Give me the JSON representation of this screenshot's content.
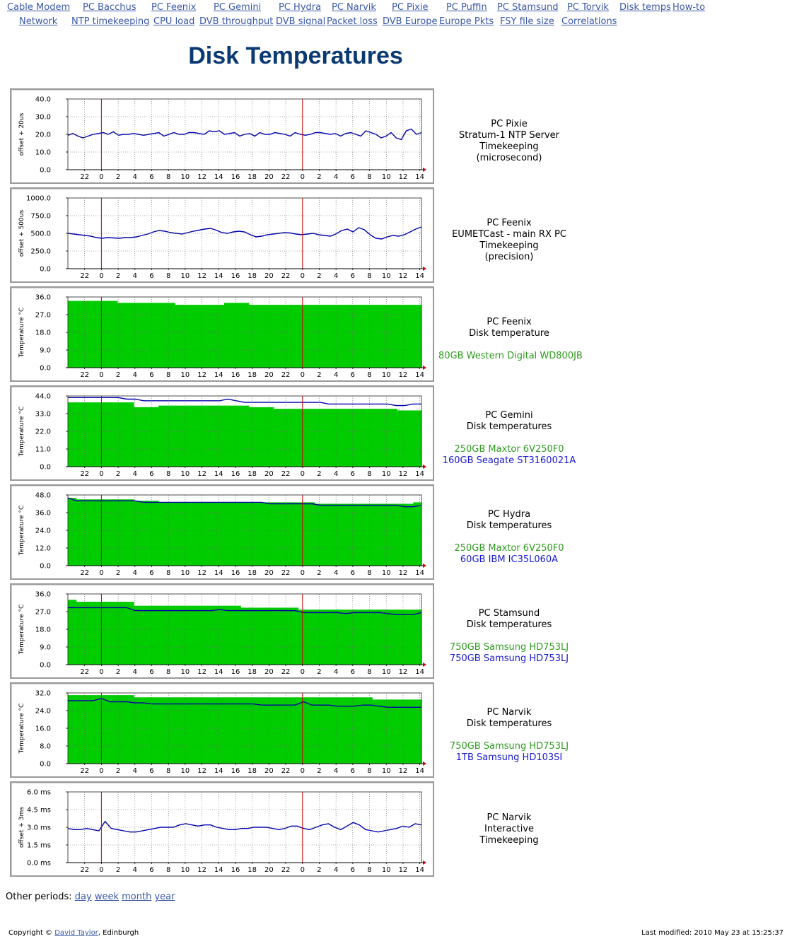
{
  "nav": {
    "row1": [
      "Cable Modem",
      "PC Bacchus",
      "PC Feenix",
      "PC Gemini",
      "PC Hydra",
      "PC Narvik",
      "PC Pixie",
      "PC Puffin",
      "PC Stamsund",
      "PC Torvik",
      "Disk temps",
      "How-to"
    ],
    "row2": [
      "Network",
      "NTP timekeeping",
      "CPU load",
      "DVB throughput",
      "DVB signal",
      "Packet loss",
      "DVB Europe",
      "Europe Pkts",
      "FSY file size",
      "Correlations"
    ]
  },
  "page_title": "Disk Temperatures",
  "colors": {
    "fill_green": "#00cc00",
    "line_blue": "#0000aa",
    "midnight_red": "#cc0000",
    "title": "#0b3a72",
    "link": "#3b59a8"
  },
  "chart_data": [
    {
      "type": "line",
      "ylabel": "offset + 20us",
      "yticks": [
        "40.0",
        "30.0",
        "20.0",
        "10.0",
        "0.0"
      ],
      "ylim": [
        0,
        40
      ],
      "xticks": [
        "22",
        "0",
        "2",
        "4",
        "6",
        "8",
        "10",
        "12",
        "14",
        "16",
        "18",
        "20",
        "22",
        "0",
        "2",
        "4",
        "6",
        "8",
        "10",
        "12",
        "14"
      ],
      "series": [
        {
          "style": "line",
          "color": "#0000aa",
          "values": [
            19.5,
            20.5,
            19,
            18,
            19,
            20,
            20.5,
            21,
            20,
            21.5,
            19.5,
            20,
            20,
            20.5,
            20,
            19.5,
            20,
            20.5,
            21,
            19,
            20,
            21,
            20,
            20,
            21,
            21,
            20.5,
            20,
            22,
            21.5,
            22,
            20,
            20.5,
            21,
            19,
            20,
            20.5,
            19,
            21,
            20,
            20,
            21,
            20.5,
            20,
            19,
            21,
            20,
            19.5,
            20,
            21,
            21,
            20.5,
            20,
            20.5,
            19,
            20.5,
            21,
            20,
            19,
            22,
            21,
            20,
            18,
            19,
            21,
            18,
            17,
            22,
            23,
            20,
            21
          ]
        }
      ],
      "lines": [
        "PC Pixie",
        "Stratum-1 NTP Server",
        "Timekeeping",
        "(microsecond)"
      ],
      "line_colors": [
        "",
        "",
        "",
        ""
      ]
    },
    {
      "type": "line",
      "ylabel": "offset + 500us",
      "yticks": [
        "1000.0",
        "750.0",
        "500.0",
        "250.0",
        "0.0"
      ],
      "ylim": [
        0,
        1000
      ],
      "xticks": [
        "22",
        "0",
        "2",
        "4",
        "6",
        "8",
        "10",
        "12",
        "14",
        "16",
        "18",
        "20",
        "22",
        "0",
        "2",
        "4",
        "6",
        "8",
        "10",
        "12",
        "14"
      ],
      "series": [
        {
          "style": "line",
          "color": "#0000aa",
          "values": [
            500,
            490,
            480,
            470,
            460,
            440,
            430,
            440,
            435,
            430,
            440,
            440,
            450,
            470,
            490,
            520,
            540,
            530,
            510,
            500,
            490,
            510,
            530,
            545,
            560,
            570,
            545,
            510,
            500,
            520,
            530,
            520,
            480,
            450,
            460,
            480,
            490,
            500,
            510,
            505,
            490,
            480,
            490,
            500,
            480,
            470,
            460,
            490,
            540,
            560,
            520,
            580,
            550,
            480,
            430,
            420,
            450,
            470,
            460,
            480,
            520,
            560,
            590
          ]
        }
      ],
      "lines": [
        "PC Feenix",
        "EUMETCast - main RX PC",
        "Timekeeping",
        "(precision)"
      ],
      "line_colors": [
        "",
        "",
        "",
        ""
      ]
    },
    {
      "type": "area",
      "ylabel": "Temperature °C",
      "yticks": [
        "36.0",
        "27.0",
        "18.0",
        "9.0",
        "0.0"
      ],
      "ylim": [
        0,
        36
      ],
      "xticks": [
        "22",
        "0",
        "2",
        "4",
        "6",
        "8",
        "10",
        "12",
        "14",
        "16",
        "18",
        "20",
        "22",
        "0",
        "2",
        "4",
        "6",
        "8",
        "10",
        "12",
        "14"
      ],
      "series": [
        {
          "style": "area",
          "color": "#00cc00",
          "values": [
            34,
            34,
            34,
            34,
            34,
            34,
            33,
            33,
            33,
            33,
            33,
            33,
            33,
            32,
            32,
            32,
            32,
            32,
            32,
            33,
            33,
            33,
            32,
            32,
            32,
            32,
            32,
            32,
            32,
            32,
            32,
            32,
            32,
            32,
            32,
            32,
            32,
            32,
            32,
            32,
            32,
            32,
            32
          ]
        }
      ],
      "lines": [
        "PC Feenix",
        "Disk temperature",
        "",
        "80GB Western Digital WD800JB"
      ],
      "line_colors": [
        "",
        "",
        "",
        "green"
      ]
    },
    {
      "type": "area+line",
      "ylabel": "Temperature °C",
      "yticks": [
        "44.0",
        "33.0",
        "22.0",
        "11.0",
        "0.0"
      ],
      "ylim": [
        0,
        44
      ],
      "xticks": [
        "22",
        "0",
        "2",
        "4",
        "6",
        "8",
        "10",
        "12",
        "14",
        "16",
        "18",
        "20",
        "22",
        "0",
        "2",
        "4",
        "6",
        "8",
        "10",
        "12",
        "14"
      ],
      "series": [
        {
          "style": "area",
          "color": "#00cc00",
          "values": [
            40,
            40,
            40,
            40,
            40,
            40,
            40,
            40,
            37,
            37,
            37,
            38,
            38,
            38,
            38,
            38,
            38,
            38,
            38,
            38,
            38,
            38,
            37,
            37,
            37,
            36,
            36,
            36,
            36,
            36,
            36,
            36,
            36,
            36,
            36,
            36,
            36,
            36,
            36,
            36,
            35,
            35,
            35
          ]
        },
        {
          "style": "line",
          "color": "#0000aa",
          "values": [
            43,
            43,
            43,
            43,
            43,
            43,
            43,
            42,
            42,
            41,
            41,
            41,
            41,
            41,
            41,
            41,
            41,
            41,
            41,
            42,
            41,
            40,
            40,
            40,
            40,
            40,
            40,
            40,
            40,
            40,
            40,
            39,
            39,
            39,
            39,
            39,
            39,
            39,
            39,
            38,
            38,
            39,
            39
          ]
        }
      ],
      "lines": [
        "PC Gemini",
        "Disk temperatures",
        "",
        "250GB Maxtor 6V250F0",
        "160GB Seagate ST3160021A"
      ],
      "line_colors": [
        "",
        "",
        "",
        "green",
        "blue"
      ]
    },
    {
      "type": "area+line",
      "ylabel": "Temperature °C",
      "yticks": [
        "48.0",
        "36.0",
        "24.0",
        "12.0",
        "0.0"
      ],
      "ylim": [
        0,
        48
      ],
      "xticks": [
        "22",
        "0",
        "2",
        "4",
        "6",
        "8",
        "10",
        "12",
        "14",
        "16",
        "18",
        "20",
        "22",
        "0",
        "2",
        "4",
        "6",
        "8",
        "10",
        "12",
        "14"
      ],
      "series": [
        {
          "style": "area",
          "color": "#00cc00",
          "values": [
            46,
            45,
            45,
            45,
            45,
            45,
            45,
            45,
            44,
            44,
            44,
            43,
            43,
            43,
            43,
            43,
            43,
            43,
            43,
            43,
            43,
            43,
            43,
            43,
            43,
            43,
            43,
            43,
            43,
            43,
            42,
            42,
            42,
            42,
            42,
            42,
            42,
            42,
            42,
            42,
            42,
            42,
            43
          ]
        },
        {
          "style": "line",
          "color": "#0000aa",
          "values": [
            46,
            44,
            44,
            44,
            44,
            44,
            44,
            44,
            44,
            43,
            43,
            43,
            43,
            43,
            43,
            43,
            43,
            43,
            43,
            43,
            43,
            43,
            43,
            43,
            42,
            42,
            42,
            42,
            42,
            42,
            41,
            41,
            41,
            41,
            41,
            41,
            41,
            41,
            41,
            41,
            40,
            40,
            41
          ]
        }
      ],
      "lines": [
        "PC Hydra",
        "Disk temperatures",
        "",
        "250GB Maxtor 6V250F0",
        "60GB IBM IC35L060A"
      ],
      "line_colors": [
        "",
        "",
        "",
        "green",
        "blue"
      ]
    },
    {
      "type": "area+line",
      "ylabel": "Temperature °C",
      "yticks": [
        "36.0",
        "27.0",
        "18.0",
        "9.0",
        "0.0"
      ],
      "ylim": [
        0,
        36
      ],
      "xticks": [
        "22",
        "0",
        "2",
        "4",
        "6",
        "8",
        "10",
        "12",
        "14",
        "16",
        "18",
        "20",
        "22",
        "0",
        "2",
        "4",
        "6",
        "8",
        "10",
        "12",
        "14"
      ],
      "series": [
        {
          "style": "area",
          "color": "#00cc00",
          "values": [
            33,
            32,
            32,
            32,
            32,
            32,
            32,
            32,
            30,
            30,
            30,
            30,
            30,
            30,
            30,
            30,
            30,
            30,
            30,
            30,
            30,
            29,
            29,
            29,
            29,
            29,
            29,
            29,
            28,
            28,
            28,
            28,
            28,
            28,
            28,
            28,
            28,
            28,
            28,
            28,
            28,
            28,
            28
          ]
        },
        {
          "style": "line",
          "color": "#0000aa",
          "values": [
            29,
            29,
            29,
            29,
            29,
            29,
            29,
            29,
            27.5,
            27.5,
            27.5,
            27.5,
            27.5,
            27.5,
            27.5,
            27.5,
            27.5,
            27.5,
            28,
            27.5,
            27.5,
            27.5,
            27.5,
            27.5,
            27.5,
            27.5,
            27.5,
            27.5,
            26.5,
            26.5,
            26.5,
            26.5,
            26.5,
            26,
            26.5,
            26.5,
            26.5,
            26.5,
            26,
            25.5,
            25.5,
            25.5,
            26.5
          ]
        }
      ],
      "lines": [
        "PC Stamsund",
        "Disk temperatures",
        "",
        "750GB Samsung HD753LJ",
        "750GB Samsung HD753LJ"
      ],
      "line_colors": [
        "",
        "",
        "",
        "green",
        "blue"
      ]
    },
    {
      "type": "area+line",
      "ylabel": "Temperature °C",
      "yticks": [
        "32.0",
        "24.0",
        "16.0",
        "8.0",
        "0.0"
      ],
      "ylim": [
        0,
        32
      ],
      "xticks": [
        "22",
        "0",
        "2",
        "4",
        "6",
        "8",
        "10",
        "12",
        "14",
        "16",
        "18",
        "20",
        "22",
        "0",
        "2",
        "4",
        "6",
        "8",
        "10",
        "12",
        "14"
      ],
      "series": [
        {
          "style": "area",
          "color": "#00cc00",
          "values": [
            31,
            31,
            31,
            31,
            31,
            31,
            31,
            31,
            30,
            30,
            30,
            30,
            30,
            30,
            30,
            30,
            30,
            30,
            30,
            30,
            30,
            30,
            30,
            30,
            30,
            30,
            30,
            30,
            30,
            30,
            30,
            30,
            30,
            30,
            30,
            30,
            30,
            29,
            29,
            29,
            29,
            29,
            29
          ]
        },
        {
          "style": "line",
          "color": "#0000aa",
          "values": [
            28.5,
            28.5,
            28.5,
            28.5,
            29.5,
            28,
            28,
            28,
            27.5,
            27.5,
            27,
            27,
            27,
            27,
            27,
            27,
            27,
            27,
            27,
            27,
            27,
            27,
            27,
            26.5,
            26.5,
            26.5,
            26.5,
            26.5,
            28,
            26.5,
            26.5,
            26.5,
            26,
            26,
            26,
            26.5,
            26.5,
            26,
            25.5,
            25.5,
            25.5,
            25.5,
            25.5
          ]
        }
      ],
      "lines": [
        "PC Narvik",
        "Disk temperatures",
        "",
        "750GB Samsung HD753LJ",
        "1TB Samsung HD103SI"
      ],
      "line_colors": [
        "",
        "",
        "",
        "green",
        "blue"
      ]
    },
    {
      "type": "line",
      "ylabel": "offset + 3ms",
      "yticks": [
        "6.0 ms",
        "4.5 ms",
        "3.0 ms",
        "1.5 ms",
        "0.0 ms"
      ],
      "ylim": [
        0,
        6
      ],
      "xticks": [
        "22",
        "0",
        "2",
        "4",
        "6",
        "8",
        "10",
        "12",
        "14",
        "16",
        "18",
        "20",
        "22",
        "0",
        "2",
        "4",
        "6",
        "8",
        "10",
        "12",
        "14"
      ],
      "series": [
        {
          "style": "line",
          "color": "#0000aa",
          "values": [
            2.9,
            2.8,
            2.8,
            2.9,
            2.8,
            2.7,
            3.5,
            2.9,
            2.8,
            2.7,
            2.6,
            2.6,
            2.7,
            2.8,
            2.9,
            3.0,
            3.0,
            3.0,
            3.2,
            3.3,
            3.2,
            3.1,
            3.2,
            3.2,
            3.0,
            2.9,
            2.8,
            2.8,
            2.9,
            2.9,
            3.0,
            3.0,
            3.0,
            2.9,
            2.8,
            2.9,
            3.1,
            3.1,
            2.9,
            2.8,
            3.0,
            3.2,
            3.3,
            3.0,
            2.8,
            3.1,
            3.4,
            3.2,
            2.8,
            2.7,
            2.6,
            2.7,
            2.8,
            2.9,
            3.1,
            3.0,
            3.3,
            3.2
          ]
        }
      ],
      "lines": [
        "PC Narvik",
        "Interactive",
        "Timekeeping"
      ],
      "line_colors": [
        "",
        "",
        ""
      ]
    }
  ],
  "other_periods": {
    "label": "Other periods:",
    "links": [
      "day",
      "week",
      "month",
      "year"
    ]
  },
  "footer": {
    "copyright_prefix": "Copyright © ",
    "author": "David Taylor",
    "copyright_suffix": ", Edinburgh",
    "last_modified": "Last modified: 2010 May 23 at 15:25:37"
  }
}
